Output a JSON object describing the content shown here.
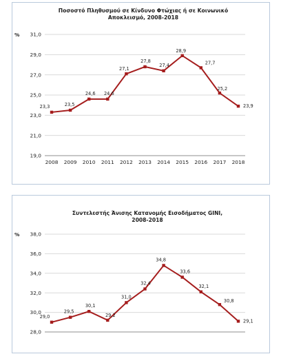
{
  "chart_data": [
    {
      "type": "line",
      "title_lines": [
        "Ποσοστό Πληθυσμού σε Κίνδυνο Φτώχιας ή σε Κοινωνικό",
        "Αποκλεισμό, 2008-2018"
      ],
      "ylabel": "%",
      "categories": [
        "2008",
        "2009",
        "2010",
        "2011",
        "2012",
        "2013",
        "2014",
        "2015",
        "2016",
        "2017",
        "2018"
      ],
      "values": [
        23.3,
        23.5,
        24.6,
        24.6,
        27.1,
        27.8,
        27.4,
        28.9,
        27.7,
        25.2,
        23.9
      ],
      "value_labels": [
        "23,3",
        "23,5",
        "24,6",
        "24,6",
        "27,1",
        "27,8",
        "27,4",
        "28,9",
        "27,7",
        "25,2",
        "23,9"
      ],
      "ylim": [
        19.0,
        31.0
      ],
      "yticks": [
        31.0,
        29.0,
        27.0,
        25.0,
        23.0,
        21.0,
        19.0
      ],
      "ytick_labels": [
        "31,0",
        "29,0",
        "27,0",
        "25,0",
        "23,0",
        "21,0",
        "19,0"
      ],
      "grid": true,
      "line_color": "#a51d1d"
    },
    {
      "type": "line",
      "title_lines": [
        "Συντελεστής Άνισης Κατανομής Εισοδήματος GINI,",
        "2008-2018"
      ],
      "ylabel": "%",
      "categories": [
        "2008",
        "2009",
        "2010",
        "2011",
        "2012",
        "2013",
        "2014",
        "2015",
        "2016",
        "2017",
        "2018"
      ],
      "values": [
        29.0,
        29.5,
        30.1,
        29.2,
        31.0,
        32.4,
        34.8,
        33.6,
        32.1,
        30.8,
        29.1
      ],
      "value_labels": [
        "29,0",
        "29,5",
        "30,1",
        "29,2",
        "31,0",
        "32,4",
        "34,8",
        "33,6",
        "32,1",
        "30,8",
        "29,1"
      ],
      "ylim": [
        28.0,
        38.0
      ],
      "yticks": [
        38.0,
        36.0,
        34.0,
        32.0,
        30.0,
        28.0
      ],
      "ytick_labels": [
        "38,0",
        "36,0",
        "34,0",
        "32,0",
        "30,0",
        "28,0"
      ],
      "grid": true,
      "line_color": "#a51d1d"
    }
  ]
}
